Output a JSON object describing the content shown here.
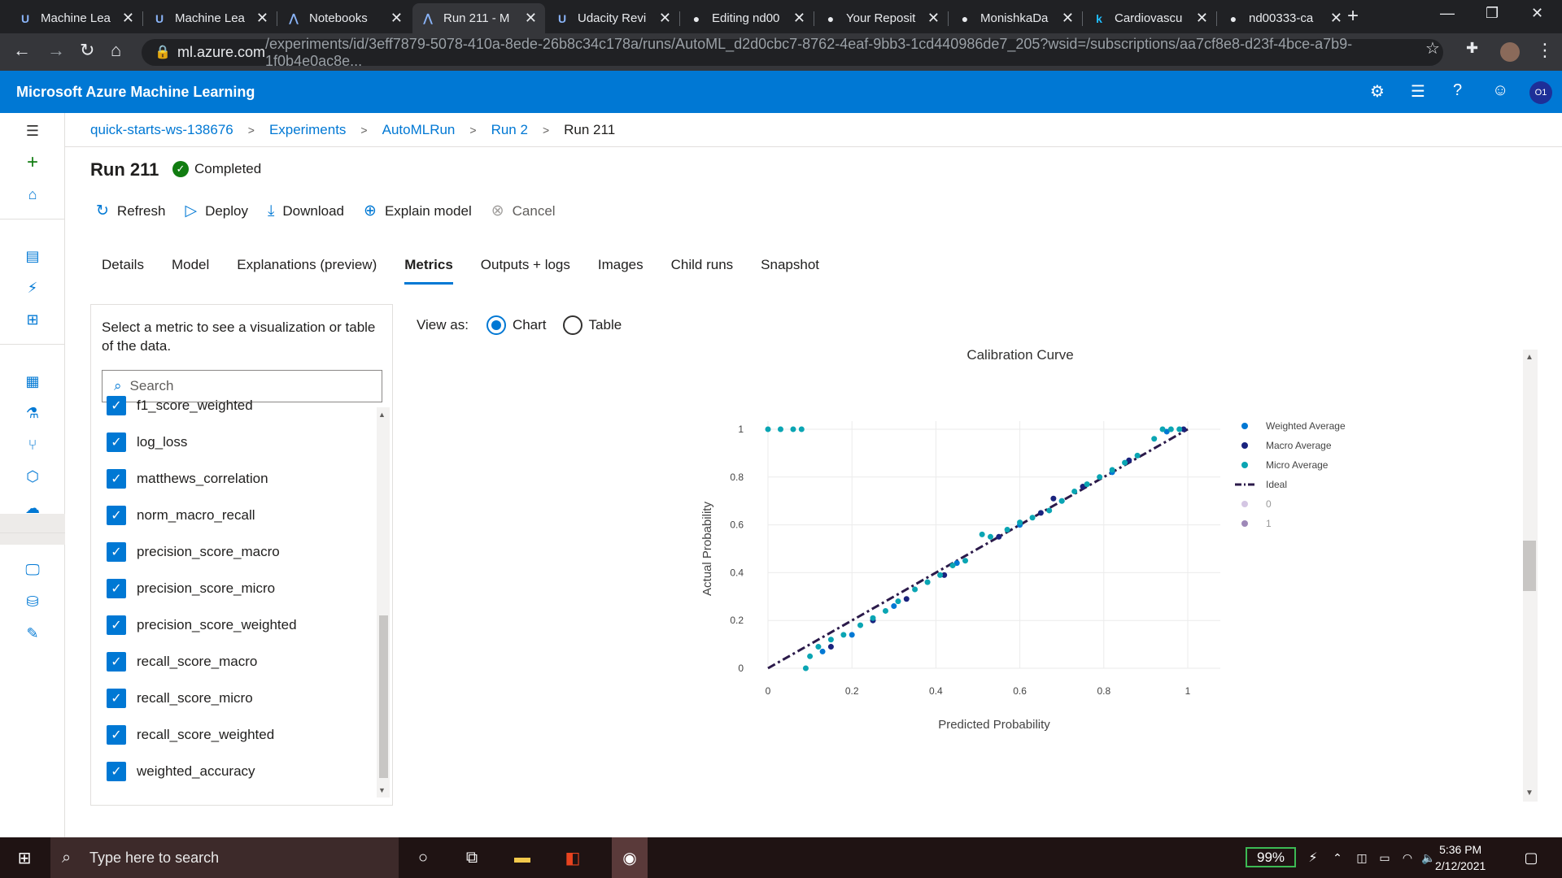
{
  "browser": {
    "tabs": [
      {
        "label": "Machine Lea",
        "icon": "azure-ml-icon"
      },
      {
        "label": "Machine Lea",
        "icon": "azure-ml-icon"
      },
      {
        "label": "Notebooks",
        "icon": "azure-icon"
      },
      {
        "label": "Run 211 - M",
        "icon": "azure-icon"
      },
      {
        "label": "Udacity Revi",
        "icon": "udacity-icon"
      },
      {
        "label": "Editing nd00",
        "icon": "github-icon"
      },
      {
        "label": "Your Reposit",
        "icon": "github-icon"
      },
      {
        "label": "MonishkaDa",
        "icon": "github-icon"
      },
      {
        "label": "Cardiovascu",
        "icon": "kaggle-icon"
      },
      {
        "label": "nd00333-ca",
        "icon": "github-icon"
      }
    ],
    "url_host": "ml.azure.com",
    "url_path": "/experiments/id/3eff7879-5078-410a-8ede-26b8c34c178a/runs/AutoML_d2d0cbc7-8762-4eaf-9bb3-1cd440986de7_205?wsid=/subscriptions/aa7cf8e8-d23f-4bce-a7b9-1f0b4e0ac8e..."
  },
  "app": {
    "title": "Microsoft Azure Machine Learning",
    "avatar": "O1"
  },
  "breadcrumb": [
    "quick-starts-ws-138676",
    "Experiments",
    "AutoMLRun",
    "Run 2",
    "Run 211"
  ],
  "run": {
    "title": "Run 211",
    "status": "Completed"
  },
  "toolbar": {
    "refresh": "Refresh",
    "deploy": "Deploy",
    "download": "Download",
    "explain": "Explain model",
    "cancel": "Cancel"
  },
  "tabs": [
    "Details",
    "Model",
    "Explanations (preview)",
    "Metrics",
    "Outputs + logs",
    "Images",
    "Child runs",
    "Snapshot"
  ],
  "metrics": {
    "help": "Select a metric to see a visualization or table of the data.",
    "search_placeholder": "Search",
    "items": [
      "f1_score_weighted",
      "log_loss",
      "matthews_correlation",
      "norm_macro_recall",
      "precision_score_macro",
      "precision_score_micro",
      "precision_score_weighted",
      "recall_score_macro",
      "recall_score_micro",
      "recall_score_weighted",
      "weighted_accuracy"
    ]
  },
  "view": {
    "label": "View as:",
    "chart": "Chart",
    "table": "Table"
  },
  "chart_data": {
    "type": "scatter",
    "title": "Calibration Curve",
    "xlabel": "Predicted Probability",
    "ylabel": "Actual Probability",
    "xlim": [
      0,
      1
    ],
    "ylim": [
      0,
      1
    ],
    "xticks": [
      "0",
      "0.2",
      "0.4",
      "0.6",
      "0.8",
      "1"
    ],
    "yticks": [
      "0",
      "0.2",
      "0.4",
      "0.6",
      "0.8",
      "1"
    ],
    "grid": true,
    "legend_position": "right",
    "legend": [
      "Weighted Average",
      "Macro Average",
      "Micro Average",
      "Ideal",
      "0",
      "1"
    ],
    "colors": {
      "weighted": "#0078d4",
      "macro": "#1a237e",
      "micro": "#0aa5b3",
      "ideal": "#2b1a4a",
      "zero": "#d4c6e3",
      "one": "#9e88b8"
    },
    "series": [
      {
        "name": "Weighted Average",
        "points": [
          [
            0.13,
            0.07
          ],
          [
            0.2,
            0.14
          ],
          [
            0.3,
            0.26
          ],
          [
            0.45,
            0.44
          ],
          [
            0.6,
            0.6
          ],
          [
            0.7,
            0.7
          ],
          [
            0.82,
            0.82
          ],
          [
            0.95,
            0.99
          ]
        ]
      },
      {
        "name": "Macro Average",
        "points": [
          [
            0.15,
            0.09
          ],
          [
            0.25,
            0.2
          ],
          [
            0.33,
            0.29
          ],
          [
            0.42,
            0.39
          ],
          [
            0.55,
            0.55
          ],
          [
            0.65,
            0.65
          ],
          [
            0.68,
            0.71
          ],
          [
            0.75,
            0.76
          ],
          [
            0.86,
            0.87
          ],
          [
            0.99,
            1.0
          ]
        ]
      },
      {
        "name": "Micro Average",
        "points": [
          [
            0.0,
            1.0
          ],
          [
            0.03,
            1.0
          ],
          [
            0.06,
            1.0
          ],
          [
            0.08,
            1.0
          ],
          [
            0.09,
            0.0
          ],
          [
            0.1,
            0.05
          ],
          [
            0.12,
            0.09
          ],
          [
            0.15,
            0.12
          ],
          [
            0.18,
            0.14
          ],
          [
            0.22,
            0.18
          ],
          [
            0.25,
            0.21
          ],
          [
            0.28,
            0.24
          ],
          [
            0.31,
            0.28
          ],
          [
            0.35,
            0.33
          ],
          [
            0.38,
            0.36
          ],
          [
            0.41,
            0.39
          ],
          [
            0.44,
            0.43
          ],
          [
            0.47,
            0.45
          ],
          [
            0.51,
            0.56
          ],
          [
            0.53,
            0.55
          ],
          [
            0.57,
            0.58
          ],
          [
            0.6,
            0.61
          ],
          [
            0.63,
            0.63
          ],
          [
            0.67,
            0.66
          ],
          [
            0.7,
            0.7
          ],
          [
            0.73,
            0.74
          ],
          [
            0.76,
            0.77
          ],
          [
            0.79,
            0.8
          ],
          [
            0.82,
            0.83
          ],
          [
            0.85,
            0.86
          ],
          [
            0.88,
            0.89
          ],
          [
            0.92,
            0.96
          ],
          [
            0.94,
            1.0
          ],
          [
            0.96,
            1.0
          ],
          [
            0.98,
            1.0
          ]
        ]
      },
      {
        "name": "Ideal",
        "points": [
          [
            0,
            0
          ],
          [
            1,
            1
          ]
        ]
      }
    ]
  },
  "taskbar": {
    "search_placeholder": "Type here to search",
    "battery": "99%",
    "time": "5:36 PM",
    "date": "2/12/2021"
  }
}
